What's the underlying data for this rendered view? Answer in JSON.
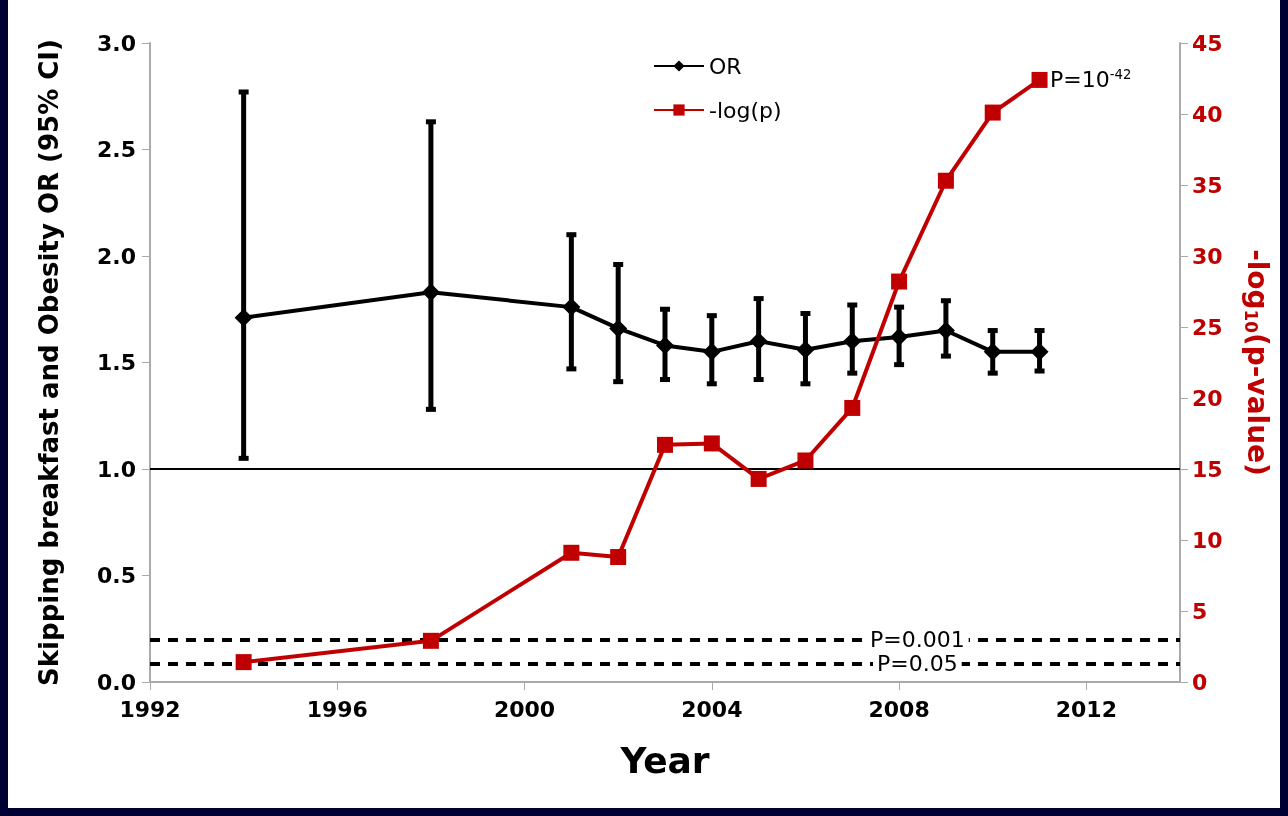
{
  "chart_data": {
    "type": "line",
    "xlabel": "Year",
    "ylabel": "Skipping breakfast and Obesity OR (95% CI)",
    "y2label": "-log$_{10}$(p-value)",
    "x": [
      1994,
      1998,
      2001,
      2002,
      2003,
      2004,
      2005,
      2006,
      2007,
      2008,
      2009,
      2010,
      2011
    ],
    "series": [
      {
        "name": "OR",
        "color": "#000000",
        "marker": "diamond",
        "values": [
          1.71,
          1.83,
          1.76,
          1.66,
          1.58,
          1.55,
          1.6,
          1.56,
          1.6,
          1.62,
          1.65,
          1.55,
          1.55
        ],
        "errors": [
          [
            1.05,
            2.77
          ],
          [
            1.28,
            2.63
          ],
          [
            1.47,
            2.1
          ],
          [
            1.41,
            1.96
          ],
          [
            1.42,
            1.75
          ],
          [
            1.4,
            1.72
          ],
          [
            1.42,
            1.8
          ],
          [
            1.4,
            1.73
          ],
          [
            1.45,
            1.77
          ],
          [
            1.49,
            1.76
          ],
          [
            1.53,
            1.79
          ],
          [
            1.45,
            1.65
          ],
          [
            1.46,
            1.65
          ]
        ]
      },
      {
        "name": "-log(p)",
        "color": "#c00000",
        "marker": "square",
        "axis": "y2",
        "values": [
          1.4,
          2.9,
          9.1,
          8.8,
          16.7,
          16.8,
          14.3,
          15.6,
          19.3,
          28.2,
          35.3,
          40.1,
          42.4
        ]
      }
    ],
    "xlim": [
      1992,
      2014
    ],
    "xticks": [
      1992,
      1996,
      2000,
      2004,
      2008,
      2012
    ],
    "ylim": [
      0,
      3
    ],
    "yticks": [
      {
        "value": 0,
        "label": "0.0"
      },
      {
        "value": 0.5,
        "label": "0.5"
      },
      {
        "value": 1,
        "label": "1.0"
      },
      {
        "value": 1.5,
        "label": "1.5"
      },
      {
        "value": 2,
        "label": "2.0"
      },
      {
        "value": 2.5,
        "label": "2.5"
      },
      {
        "value": 3,
        "label": "3.0"
      }
    ],
    "y2lim": [
      0,
      45
    ],
    "y2ticks": [
      0,
      5,
      10,
      15,
      20,
      25,
      30,
      35,
      40,
      45
    ],
    "ref_lines": [
      {
        "axis": "y",
        "value": 1,
        "label": null,
        "color": "#000000",
        "line_style": "solid"
      },
      {
        "axis": "y2",
        "value": 3,
        "label": null,
        "color": "#000000",
        "line_style": "dashed"
      },
      {
        "axis": "y2",
        "value": 1.3,
        "label": null,
        "color": "#000000",
        "line_style": "dashed"
      }
    ],
    "annotations": [
      "P=10$^{-42}$",
      "P=0.001",
      "P=0.05"
    ],
    "legend": "top",
    "grid": false,
    "line_style": "solid"
  }
}
